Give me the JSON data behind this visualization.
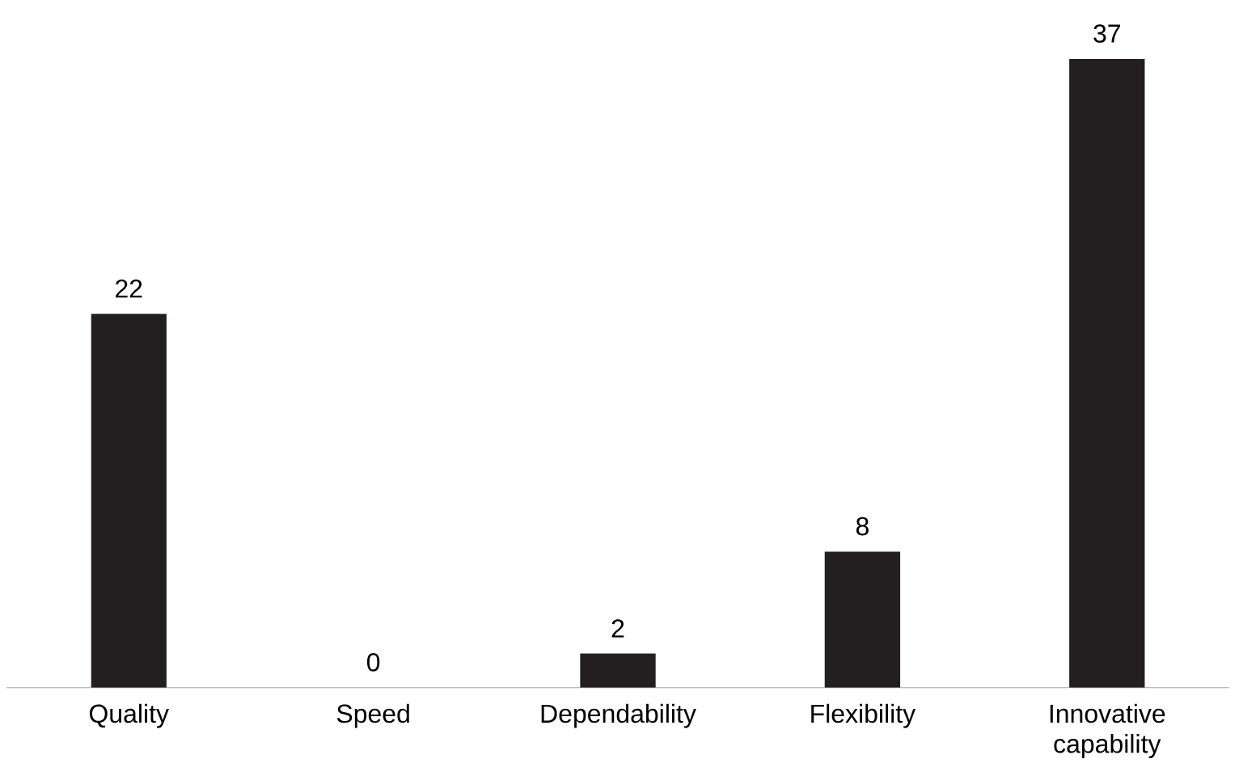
{
  "chart_data": {
    "type": "bar",
    "categories": [
      "Quality",
      "Speed",
      "Dependability",
      "Flexibility",
      "Innovative capability"
    ],
    "values": [
      22,
      0,
      2,
      8,
      37
    ],
    "color": "#231f20",
    "data_labels": true
  }
}
